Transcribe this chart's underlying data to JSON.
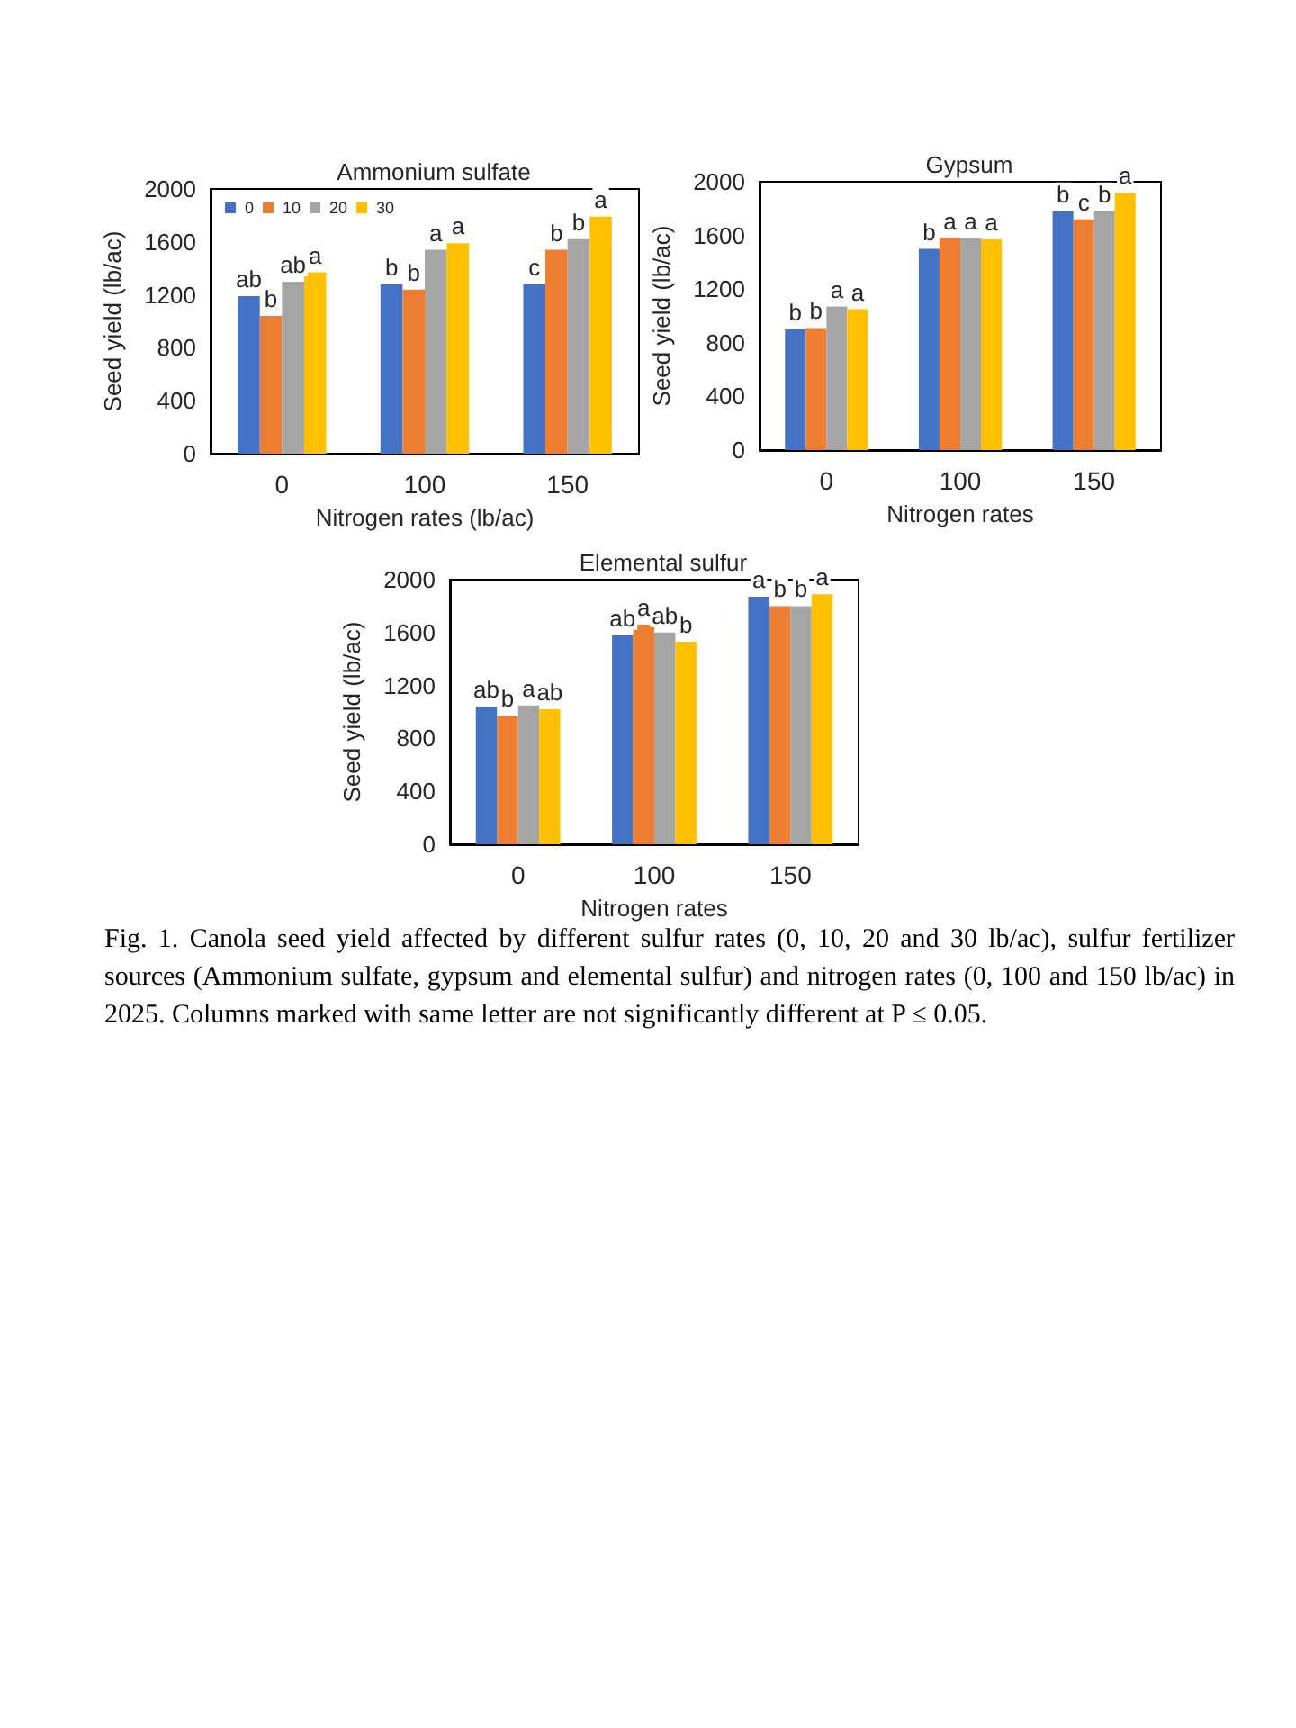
{
  "chart_data": [
    {
      "type": "bar",
      "title": "Ammonium sulfate",
      "xlabel": "Nitrogen rates (lb/ac)",
      "ylabel": "Seed yield (lb/ac)",
      "categories": [
        "0",
        "100",
        "150"
      ],
      "ylim": [
        0,
        2000
      ],
      "yticks": [
        0,
        400,
        800,
        1200,
        1600,
        2000
      ],
      "grid": false,
      "legend": "top left",
      "series": [
        {
          "name": "0",
          "color": "#4472c4",
          "values": [
            1190,
            1280,
            1280
          ],
          "value_labels": [
            "ab",
            "b",
            "c"
          ]
        },
        {
          "name": "10",
          "color": "#ed7d31",
          "values": [
            1040,
            1240,
            1540
          ],
          "value_labels": [
            "b",
            "b",
            "b"
          ]
        },
        {
          "name": "20",
          "color": "#a5a5a5",
          "values": [
            1300,
            1540,
            1620
          ],
          "value_labels": [
            "ab",
            "a",
            "b"
          ]
        },
        {
          "name": "30",
          "color": "#ffc000",
          "values": [
            1370,
            1590,
            1790
          ],
          "value_labels": [
            "a",
            "a",
            "a"
          ]
        }
      ]
    },
    {
      "type": "bar",
      "title": "Gypsum",
      "xlabel": "Nitrogen rates",
      "ylabel": "Seed yield (lb/ac)",
      "categories": [
        "0",
        "100",
        "150"
      ],
      "ylim": [
        0,
        2000
      ],
      "yticks": [
        0,
        400,
        800,
        1200,
        1600,
        2000
      ],
      "grid": false,
      "legend": false,
      "series": [
        {
          "color": "#4472c4",
          "values": [
            900,
            1500,
            1780
          ],
          "value_labels": [
            "b",
            "b",
            "b"
          ]
        },
        {
          "color": "#ed7d31",
          "values": [
            910,
            1580,
            1720
          ],
          "value_labels": [
            "b",
            "a",
            "c"
          ]
        },
        {
          "color": "#a5a5a5",
          "values": [
            1070,
            1580,
            1780
          ],
          "value_labels": [
            "a",
            "a",
            "b"
          ]
        },
        {
          "color": "#ffc000",
          "values": [
            1050,
            1570,
            1920
          ],
          "value_labels": [
            "a",
            "a",
            "a"
          ]
        }
      ]
    },
    {
      "type": "bar",
      "title": "Elemental sulfur",
      "xlabel": "Nitrogen rates",
      "ylabel": "Seed yield (lb/ac)",
      "categories": [
        "0",
        "100",
        "150"
      ],
      "ylim": [
        0,
        2000
      ],
      "yticks": [
        0,
        400,
        800,
        1200,
        1600,
        2000
      ],
      "grid": false,
      "legend": false,
      "annotations": [
        "Fig. 1. Canola seed yield affected by different sulfur rates (0, 10, 20 and 30 lb/ac), sulfur fertilizer sources (Ammonium sulfate, gypsum and elemental sulfur) and nitrogen rates (0, 100 and 150 lb/ac) in 2025. Columns marked with same letter are not significantly different at P ≤ 0.05."
      ],
      "series": [
        {
          "color": "#4472c4",
          "values": [
            1040,
            1580,
            1870
          ],
          "value_labels": [
            "ab",
            "ab",
            "a"
          ]
        },
        {
          "color": "#ed7d31",
          "values": [
            970,
            1660,
            1800
          ],
          "value_labels": [
            "b",
            "a",
            "b"
          ]
        },
        {
          "color": "#a5a5a5",
          "values": [
            1050,
            1600,
            1800
          ],
          "value_labels": [
            "a",
            "ab",
            "b"
          ]
        },
        {
          "color": "#ffc000",
          "values": [
            1020,
            1530,
            1890
          ],
          "value_labels": [
            "ab",
            "b",
            "a"
          ]
        }
      ]
    }
  ]
}
